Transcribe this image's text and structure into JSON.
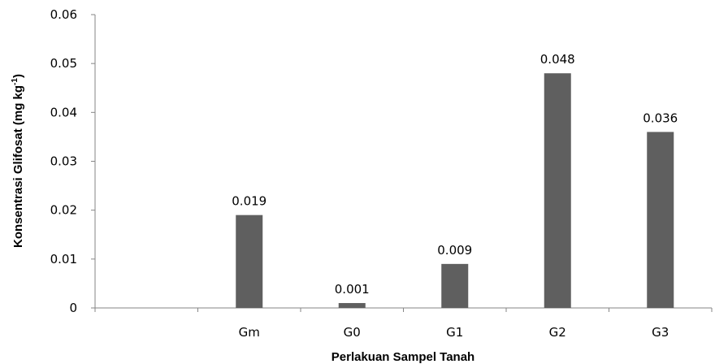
{
  "chart_data": {
    "type": "bar",
    "title": "",
    "categories": [
      "",
      "Gm",
      "G0",
      "G1",
      "G2",
      "G3"
    ],
    "values": [
      null,
      0.019,
      0.001,
      0.009,
      0.048,
      0.036
    ],
    "data_labels": [
      "",
      "0.019",
      "0.001",
      "0.009",
      "0.048",
      "0.036"
    ],
    "xlabel": "Perlakuan Sampel Tanah",
    "ylabel_main": "Konsentrasi Glifosat (mg kg",
    "ylabel_sup": "-1",
    "ylabel_end": ")",
    "ylim": [
      0,
      0.06
    ],
    "yticks": [
      "0",
      "0.01",
      "0.02",
      "0.03",
      "0.04",
      "0.05",
      "0.06"
    ],
    "grid": false,
    "legend": "none",
    "bar_color": "#5f5f5f",
    "axis_color": "#868686"
  }
}
